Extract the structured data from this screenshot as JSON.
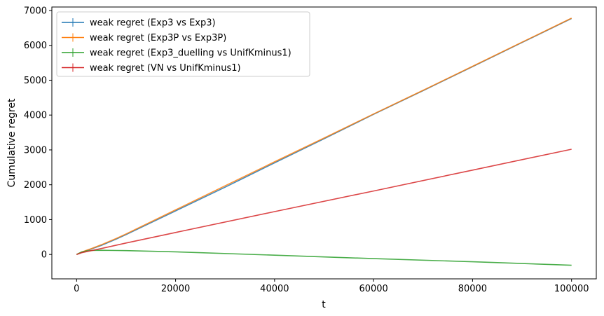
{
  "chart_data": {
    "type": "line",
    "title": "",
    "xlabel": "t",
    "ylabel": "Cumulative regret",
    "xlim": [
      -5000,
      105000
    ],
    "ylim": [
      -700,
      7100
    ],
    "xticks": [
      0,
      20000,
      40000,
      60000,
      80000,
      100000
    ],
    "xtick_labels": [
      "0",
      "20000",
      "40000",
      "60000",
      "80000",
      "100000"
    ],
    "yticks": [
      0,
      1000,
      2000,
      3000,
      4000,
      5000,
      6000,
      7000
    ],
    "ytick_labels": [
      "0",
      "1000",
      "2000",
      "3000",
      "4000",
      "5000",
      "6000",
      "7000"
    ],
    "grid": false,
    "legend_position": "top-left",
    "series": [
      {
        "name": "weak regret (Exp3 vs Exp3)",
        "color": "#1f77b4",
        "x": [
          0,
          1000,
          2000,
          3000,
          5000,
          8000,
          10000,
          20000,
          30000,
          40000,
          50000,
          60000,
          70000,
          80000,
          90000,
          100000
        ],
        "y": [
          0,
          60,
          110,
          160,
          260,
          440,
          570,
          1250,
          1930,
          2630,
          3320,
          4020,
          4700,
          5390,
          6080,
          6770
        ]
      },
      {
        "name": "weak regret (Exp3P vs Exp3P)",
        "color": "#ff7f0e",
        "x": [
          0,
          1000,
          2000,
          3000,
          5000,
          8000,
          10000,
          20000,
          30000,
          40000,
          50000,
          60000,
          70000,
          80000,
          90000,
          100000
        ],
        "y": [
          0,
          70,
          120,
          170,
          280,
          460,
          590,
          1280,
          1970,
          2660,
          3340,
          4030,
          4710,
          5400,
          6090,
          6780
        ]
      },
      {
        "name": "weak regret (Exp3_duelling vs UnifKminus1)",
        "color": "#2ca02c",
        "x": [
          0,
          1000,
          2000,
          3000,
          5000,
          8000,
          10000,
          20000,
          40000,
          60000,
          80000,
          100000
        ],
        "y": [
          0,
          70,
          100,
          115,
          120,
          115,
          110,
          75,
          -20,
          -120,
          -210,
          -310
        ]
      },
      {
        "name": "weak regret (VN vs UnifKminus1)",
        "color": "#d62728",
        "x": [
          0,
          1000,
          2000,
          3000,
          5000,
          10000,
          20000,
          40000,
          60000,
          80000,
          100000
        ],
        "y": [
          0,
          50,
          80,
          110,
          170,
          330,
          630,
          1230,
          1820,
          2420,
          3020
        ]
      }
    ]
  }
}
